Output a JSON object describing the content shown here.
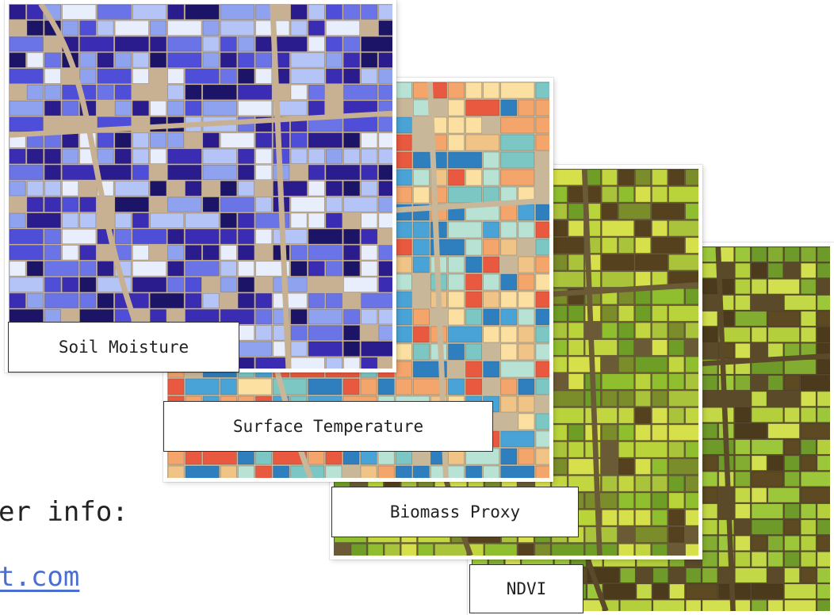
{
  "layers": [
    {
      "label": "Soil Moisture",
      "palette": [
        "#2a1c8c",
        "#3b2cb4",
        "#4f4ed8",
        "#6b74e6",
        "#8fa2f0",
        "#b5c4f7",
        "#1c1466",
        "#e8eefc"
      ],
      "background": "#c7b192"
    },
    {
      "label": "Surface Temperature",
      "palette": [
        "#7cc6c4",
        "#4aa3d6",
        "#f3a56c",
        "#e8593f",
        "#fbe0a2",
        "#b8e2d4",
        "#2f7fbf",
        "#f0c486"
      ],
      "background": "#c9b79a"
    },
    {
      "label": "Biomass Proxy",
      "palette": [
        "#8fbf2f",
        "#b8d43a",
        "#6f9e26",
        "#d6e04a",
        "#55411d",
        "#a9c33a",
        "#7a8d2a",
        "#c2d640"
      ],
      "background": "#6b5a36"
    },
    {
      "label": "NDVI",
      "palette": [
        "#9cc73a",
        "#c3d846",
        "#6e9a2a",
        "#4b3a1c",
        "#b3cf3c",
        "#5d4a22",
        "#d2df4e",
        "#83ad30"
      ],
      "background": "#5a4a2a"
    }
  ],
  "side": {
    "info_text": "er info:",
    "link_text": "t.com"
  }
}
